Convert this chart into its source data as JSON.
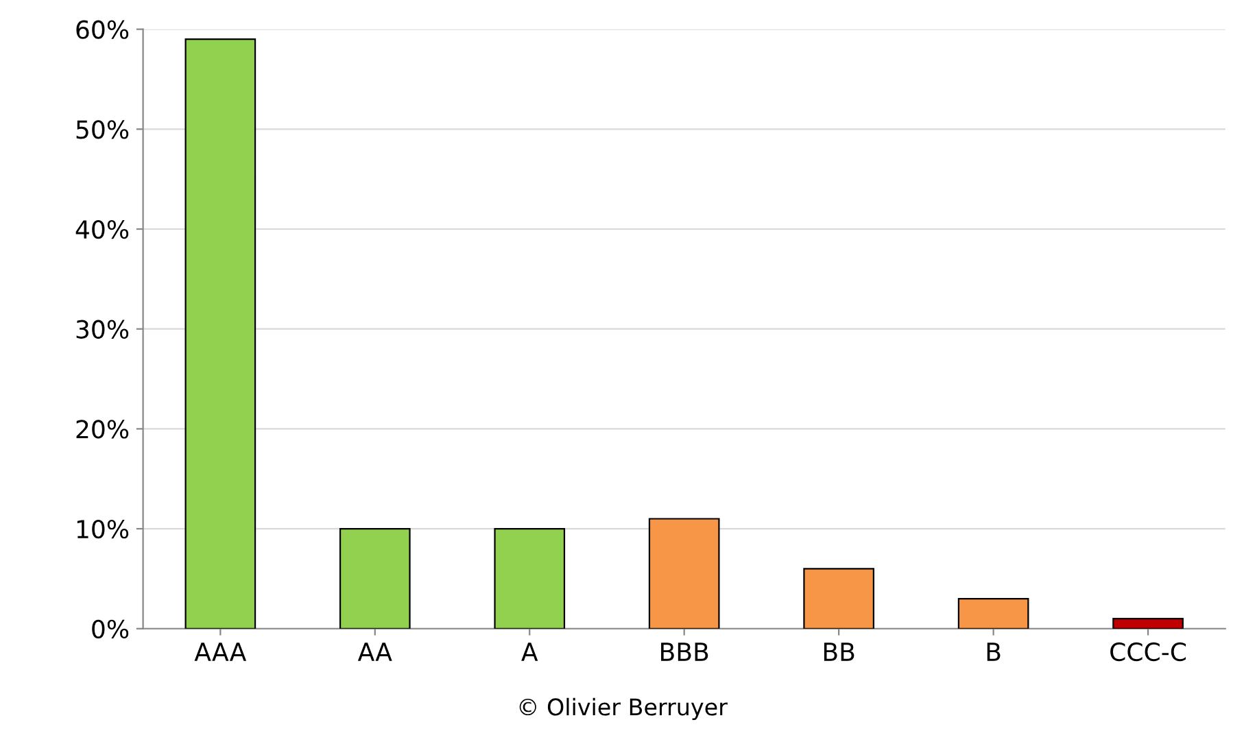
{
  "chart_data": {
    "type": "bar",
    "categories": [
      "AAA",
      "AA",
      "A",
      "BBB",
      "BB",
      "B",
      "CCC-C"
    ],
    "values": [
      59,
      10,
      10,
      11,
      6,
      3,
      1
    ],
    "colors": [
      "#92d050",
      "#92d050",
      "#92d050",
      "#f79646",
      "#f79646",
      "#f79646",
      "#c00000"
    ],
    "ylim": [
      0,
      60
    ],
    "yticks": [
      {
        "value": 0,
        "label": "0%"
      },
      {
        "value": 10,
        "label": "10%"
      },
      {
        "value": 20,
        "label": "20%"
      },
      {
        "value": 30,
        "label": "30%"
      },
      {
        "value": 40,
        "label": "40%"
      },
      {
        "value": 50,
        "label": "50%"
      },
      {
        "value": 60,
        "label": "60%"
      }
    ],
    "grid": "y",
    "annotations": [
      "© Olivier Berruyer"
    ]
  }
}
